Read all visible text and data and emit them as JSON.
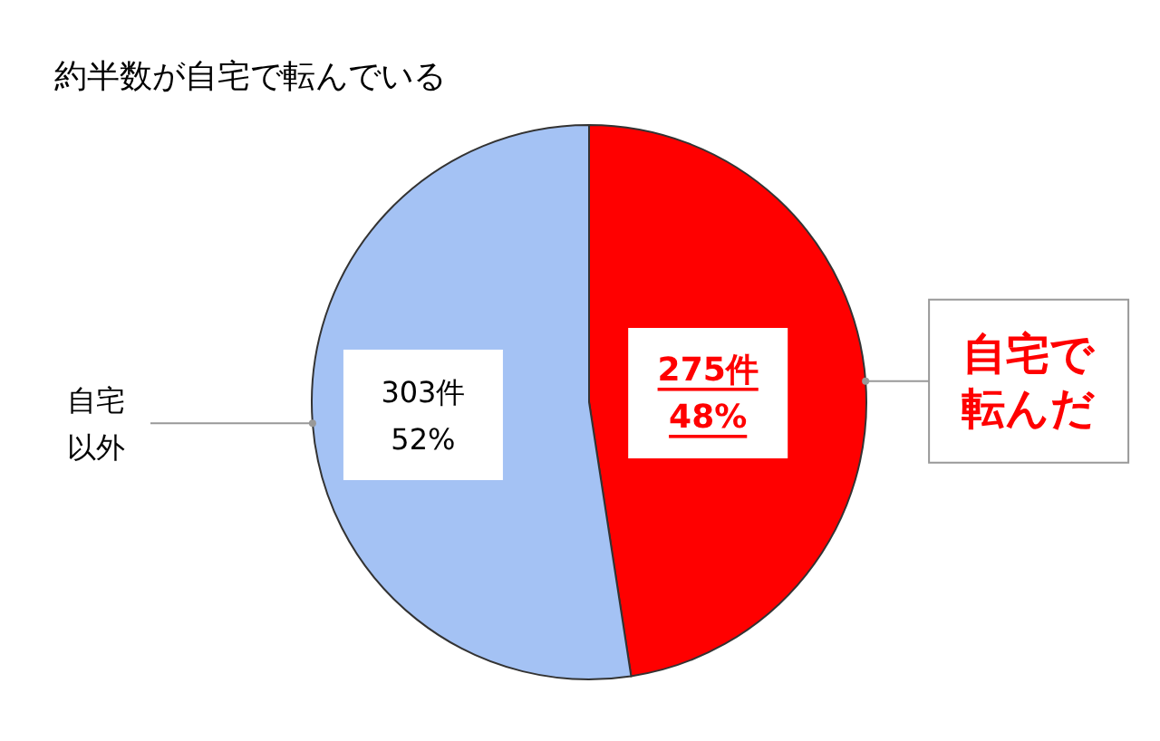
{
  "chart_data": {
    "type": "pie",
    "title": "約半数が自宅で転んでいる",
    "categories": [
      "自宅で転んだ",
      "自宅以外"
    ],
    "values": [
      275,
      303
    ],
    "value_labels": [
      "275件\n48%",
      "303件\n52%"
    ],
    "colors": [
      "#ff0000",
      "#a4c2f4"
    ]
  }
}
